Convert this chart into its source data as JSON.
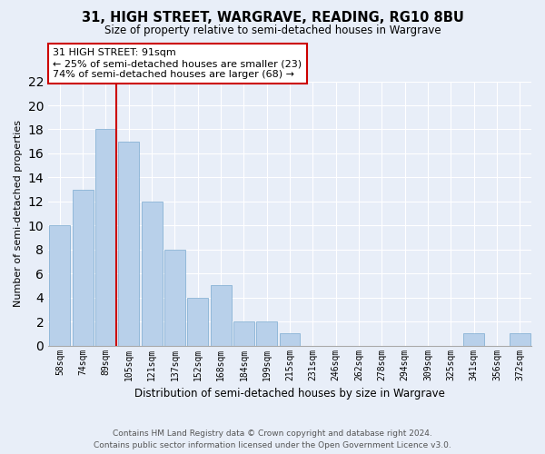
{
  "title": "31, HIGH STREET, WARGRAVE, READING, RG10 8BU",
  "subtitle": "Size of property relative to semi-detached houses in Wargrave",
  "xlabel": "Distribution of semi-detached houses by size in Wargrave",
  "ylabel": "Number of semi-detached properties",
  "footer_line1": "Contains HM Land Registry data © Crown copyright and database right 2024.",
  "footer_line2": "Contains public sector information licensed under the Open Government Licence v3.0.",
  "bin_labels": [
    "58sqm",
    "74sqm",
    "89sqm",
    "105sqm",
    "121sqm",
    "137sqm",
    "152sqm",
    "168sqm",
    "184sqm",
    "199sqm",
    "215sqm",
    "231sqm",
    "246sqm",
    "262sqm",
    "278sqm",
    "294sqm",
    "309sqm",
    "325sqm",
    "341sqm",
    "356sqm",
    "372sqm"
  ],
  "bar_values": [
    10,
    13,
    18,
    17,
    12,
    8,
    4,
    5,
    2,
    2,
    1,
    0,
    0,
    0,
    0,
    0,
    0,
    0,
    1,
    0,
    1
  ],
  "bar_color": "#b8d0ea",
  "highlight_bar_index": 2,
  "highlight_color": "#cc0000",
  "property_label": "31 HIGH STREET: 91sqm",
  "annotation_line1": "← 25% of semi-detached houses are smaller (23)",
  "annotation_line2": "74% of semi-detached houses are larger (68) →",
  "ylim": [
    0,
    22
  ],
  "yticks": [
    0,
    2,
    4,
    6,
    8,
    10,
    12,
    14,
    16,
    18,
    20,
    22
  ],
  "bg_color": "#e8eef8",
  "plot_bg_color": "#e8eef8",
  "grid_color": "#ffffff",
  "annotation_box_color": "#ffffff",
  "annotation_box_edge": "#cc0000"
}
